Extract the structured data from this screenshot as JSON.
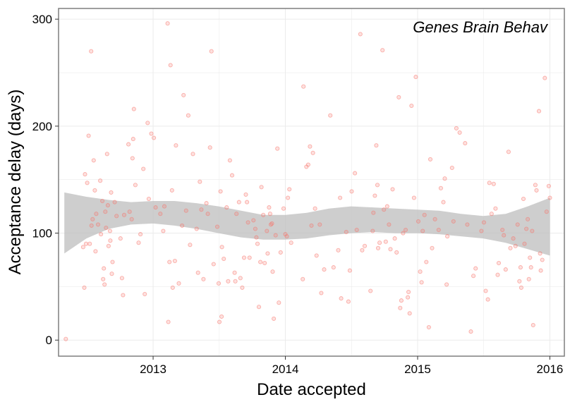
{
  "chart_data": {
    "type": "scatter",
    "title": "",
    "annotation": "Genes Brain Behav",
    "xlabel": "Date accepted",
    "ylabel": "Acceptance delay (days)",
    "x_axis_type": "date",
    "xlim": [
      "2012-04-15",
      "2016-02-10"
    ],
    "ylim": [
      -15,
      310
    ],
    "x_ticks": [
      {
        "value": "2013-01-01",
        "label": "2013"
      },
      {
        "value": "2014-01-01",
        "label": "2014"
      },
      {
        "value": "2015-01-01",
        "label": "2015"
      },
      {
        "value": "2016-01-01",
        "label": "2016"
      }
    ],
    "y_ticks": [
      {
        "value": 0,
        "label": "0"
      },
      {
        "value": 100,
        "label": "100"
      },
      {
        "value": 200,
        "label": "200"
      },
      {
        "value": 300,
        "label": "300"
      }
    ],
    "grid": true,
    "colors": {
      "points": "#f8766d",
      "ribbon": "#bdbdbd",
      "grid": "#ebebeb",
      "border": "#7f7f7f"
    },
    "points": [
      [
        "2012-05-05",
        1
      ],
      [
        "2012-06-22",
        87
      ],
      [
        "2012-06-25",
        49
      ],
      [
        "2012-06-27",
        155
      ],
      [
        "2012-06-30",
        90
      ],
      [
        "2012-07-03",
        147
      ],
      [
        "2012-07-07",
        191
      ],
      [
        "2012-07-10",
        90
      ],
      [
        "2012-07-14",
        270
      ],
      [
        "2012-07-15",
        107
      ],
      [
        "2012-07-18",
        113
      ],
      [
        "2012-07-21",
        168
      ],
      [
        "2012-07-24",
        140
      ],
      [
        "2012-07-26",
        83
      ],
      [
        "2012-07-28",
        118
      ],
      [
        "2012-08-02",
        108
      ],
      [
        "2012-08-08",
        149
      ],
      [
        "2012-08-10",
        99
      ],
      [
        "2012-08-14",
        130
      ],
      [
        "2012-08-16",
        57
      ],
      [
        "2012-08-18",
        67
      ],
      [
        "2012-08-20",
        52
      ],
      [
        "2012-08-22",
        120
      ],
      [
        "2012-08-24",
        105
      ],
      [
        "2012-08-27",
        174
      ],
      [
        "2012-08-29",
        126
      ],
      [
        "2012-08-31",
        88
      ],
      [
        "2012-09-04",
        102
      ],
      [
        "2012-09-05",
        93
      ],
      [
        "2012-09-07",
        138
      ],
      [
        "2012-09-09",
        62
      ],
      [
        "2012-09-11",
        73
      ],
      [
        "2012-09-17",
        129
      ],
      [
        "2012-09-22",
        116
      ],
      [
        "2012-10-03",
        95
      ],
      [
        "2012-10-07",
        58
      ],
      [
        "2012-10-10",
        42
      ],
      [
        "2012-10-13",
        117
      ],
      [
        "2012-10-25",
        183
      ],
      [
        "2012-10-28",
        120
      ],
      [
        "2012-11-03",
        113
      ],
      [
        "2012-11-05",
        170
      ],
      [
        "2012-11-07",
        188
      ],
      [
        "2012-11-09",
        216
      ],
      [
        "2012-11-13",
        145
      ],
      [
        "2012-11-22",
        91
      ],
      [
        "2012-11-27",
        99
      ],
      [
        "2012-12-05",
        160
      ],
      [
        "2012-12-09",
        43
      ],
      [
        "2012-12-17",
        203
      ],
      [
        "2012-12-20",
        132
      ],
      [
        "2012-12-27",
        193
      ],
      [
        "2013-01-03",
        189
      ],
      [
        "2013-01-08",
        124
      ],
      [
        "2013-01-21",
        118
      ],
      [
        "2013-01-29",
        102
      ],
      [
        "2013-02-01",
        125
      ],
      [
        "2013-02-10",
        296
      ],
      [
        "2013-02-12",
        17
      ],
      [
        "2013-02-15",
        73
      ],
      [
        "2013-02-18",
        257
      ],
      [
        "2013-02-22",
        140
      ],
      [
        "2013-02-24",
        49
      ],
      [
        "2013-03-02",
        74
      ],
      [
        "2013-03-05",
        182
      ],
      [
        "2013-03-13",
        53
      ],
      [
        "2013-03-22",
        107
      ],
      [
        "2013-03-26",
        229
      ],
      [
        "2013-04-02",
        121
      ],
      [
        "2013-04-08",
        210
      ],
      [
        "2013-04-13",
        89
      ],
      [
        "2013-04-21",
        174
      ],
      [
        "2013-05-01",
        104
      ],
      [
        "2013-05-05",
        63
      ],
      [
        "2013-05-10",
        148
      ],
      [
        "2013-05-14",
        122
      ],
      [
        "2013-05-20",
        57
      ],
      [
        "2013-05-28",
        128
      ],
      [
        "2013-06-01",
        118
      ],
      [
        "2013-06-07",
        180
      ],
      [
        "2013-06-11",
        270
      ],
      [
        "2013-06-17",
        71
      ],
      [
        "2013-06-27",
        106
      ],
      [
        "2013-07-01",
        53
      ],
      [
        "2013-07-03",
        17
      ],
      [
        "2013-07-06",
        139
      ],
      [
        "2013-07-09",
        22
      ],
      [
        "2013-07-10",
        87
      ],
      [
        "2013-07-15",
        76
      ],
      [
        "2013-07-23",
        124
      ],
      [
        "2013-07-27",
        55
      ],
      [
        "2013-08-01",
        168
      ],
      [
        "2013-08-07",
        154
      ],
      [
        "2013-08-14",
        63
      ],
      [
        "2013-08-16",
        55
      ],
      [
        "2013-08-19",
        118
      ],
      [
        "2013-08-26",
        129
      ],
      [
        "2013-08-30",
        58
      ],
      [
        "2013-09-04",
        49
      ],
      [
        "2013-09-09",
        77
      ],
      [
        "2013-09-14",
        136
      ],
      [
        "2013-09-17",
        129
      ],
      [
        "2013-09-20",
        110
      ],
      [
        "2013-09-24",
        77
      ],
      [
        "2013-10-05",
        112
      ],
      [
        "2013-10-10",
        104
      ],
      [
        "2013-10-13",
        96
      ],
      [
        "2013-10-16",
        90
      ],
      [
        "2013-10-20",
        31
      ],
      [
        "2013-10-24",
        73
      ],
      [
        "2013-10-27",
        143
      ],
      [
        "2013-11-01",
        117
      ],
      [
        "2013-11-05",
        72
      ],
      [
        "2013-11-11",
        102
      ],
      [
        "2013-11-13",
        81
      ],
      [
        "2013-11-17",
        124
      ],
      [
        "2013-11-20",
        118
      ],
      [
        "2013-11-22",
        108
      ],
      [
        "2013-11-25",
        109
      ],
      [
        "2013-11-27",
        64
      ],
      [
        "2013-11-30",
        20
      ],
      [
        "2013-12-05",
        98
      ],
      [
        "2013-12-10",
        179
      ],
      [
        "2013-12-14",
        35
      ],
      [
        "2013-12-19",
        82
      ],
      [
        "2013-12-27",
        123
      ],
      [
        "2014-01-01",
        99
      ],
      [
        "2014-01-05",
        97
      ],
      [
        "2014-01-08",
        133
      ],
      [
        "2014-01-12",
        141
      ],
      [
        "2014-01-17",
        91
      ],
      [
        "2014-02-18",
        57
      ],
      [
        "2014-02-20",
        237
      ],
      [
        "2014-02-28",
        162
      ],
      [
        "2014-03-05",
        164
      ],
      [
        "2014-03-10",
        181
      ],
      [
        "2014-03-14",
        107
      ],
      [
        "2014-03-18",
        175
      ],
      [
        "2014-03-24",
        123
      ],
      [
        "2014-03-28",
        79
      ],
      [
        "2014-04-06",
        108
      ],
      [
        "2014-04-10",
        44
      ],
      [
        "2014-04-18",
        66
      ],
      [
        "2014-05-05",
        210
      ],
      [
        "2014-05-14",
        68
      ],
      [
        "2014-05-27",
        84
      ],
      [
        "2014-06-01",
        133
      ],
      [
        "2014-06-04",
        39
      ],
      [
        "2014-06-18",
        101
      ],
      [
        "2014-06-24",
        36
      ],
      [
        "2014-06-28",
        65
      ],
      [
        "2014-07-03",
        139
      ],
      [
        "2014-07-12",
        156
      ],
      [
        "2014-07-17",
        103
      ],
      [
        "2014-07-27",
        286
      ],
      [
        "2014-08-01",
        84
      ],
      [
        "2014-08-08",
        88
      ],
      [
        "2014-08-24",
        46
      ],
      [
        "2014-08-30",
        102
      ],
      [
        "2014-09-01",
        119
      ],
      [
        "2014-09-05",
        135
      ],
      [
        "2014-09-09",
        182
      ],
      [
        "2014-09-12",
        145
      ],
      [
        "2014-09-14",
        86
      ],
      [
        "2014-09-18",
        91
      ],
      [
        "2014-09-26",
        271
      ],
      [
        "2014-09-30",
        122
      ],
      [
        "2014-10-05",
        92
      ],
      [
        "2014-10-09",
        125
      ],
      [
        "2014-10-14",
        108
      ],
      [
        "2014-10-18",
        85
      ],
      [
        "2014-10-24",
        141
      ],
      [
        "2014-10-30",
        95
      ],
      [
        "2014-11-04",
        82
      ],
      [
        "2014-11-10",
        227
      ],
      [
        "2014-11-14",
        30
      ],
      [
        "2014-11-17",
        37
      ],
      [
        "2014-11-22",
        100
      ],
      [
        "2014-11-29",
        103
      ],
      [
        "2014-12-05",
        40
      ],
      [
        "2014-12-07",
        45
      ],
      [
        "2014-12-10",
        25
      ],
      [
        "2014-12-15",
        219
      ],
      [
        "2014-12-22",
        133
      ],
      [
        "2014-12-27",
        246
      ],
      [
        "2015-01-03",
        111
      ],
      [
        "2015-01-08",
        64
      ],
      [
        "2015-01-12",
        54
      ],
      [
        "2015-01-15",
        102
      ],
      [
        "2015-01-20",
        117
      ],
      [
        "2015-01-25",
        73
      ],
      [
        "2015-02-01",
        12
      ],
      [
        "2015-02-05",
        169
      ],
      [
        "2015-02-10",
        86
      ],
      [
        "2015-02-18",
        113
      ],
      [
        "2015-02-28",
        103
      ],
      [
        "2015-03-06",
        142
      ],
      [
        "2015-03-13",
        129
      ],
      [
        "2015-03-17",
        151
      ],
      [
        "2015-03-22",
        52
      ],
      [
        "2015-03-24",
        97
      ],
      [
        "2015-04-06",
        161
      ],
      [
        "2015-04-10",
        111
      ],
      [
        "2015-04-18",
        198
      ],
      [
        "2015-04-27",
        194
      ],
      [
        "2015-05-12",
        184
      ],
      [
        "2015-05-18",
        108
      ],
      [
        "2015-05-28",
        8
      ],
      [
        "2015-06-04",
        60
      ],
      [
        "2015-06-10",
        67
      ],
      [
        "2015-06-26",
        102
      ],
      [
        "2015-07-03",
        110
      ],
      [
        "2015-07-08",
        46
      ],
      [
        "2015-07-14",
        38
      ],
      [
        "2015-07-18",
        147
      ],
      [
        "2015-07-24",
        118
      ],
      [
        "2015-07-30",
        146
      ],
      [
        "2015-08-04",
        123
      ],
      [
        "2015-08-10",
        61
      ],
      [
        "2015-08-13",
        72
      ],
      [
        "2015-08-23",
        103
      ],
      [
        "2015-08-27",
        98
      ],
      [
        "2015-09-01",
        66
      ],
      [
        "2015-09-09",
        176
      ],
      [
        "2015-09-14",
        86
      ],
      [
        "2015-09-22",
        95
      ],
      [
        "2015-09-28",
        88
      ],
      [
        "2015-10-04",
        108
      ],
      [
        "2015-10-09",
        55
      ],
      [
        "2015-10-12",
        68
      ],
      [
        "2015-10-14",
        49
      ],
      [
        "2015-10-20",
        132
      ],
      [
        "2015-10-23",
        90
      ],
      [
        "2015-10-28",
        104
      ],
      [
        "2015-11-01",
        113
      ],
      [
        "2015-11-04",
        57
      ],
      [
        "2015-11-07",
        77
      ],
      [
        "2015-11-10",
        68
      ],
      [
        "2015-11-13",
        102
      ],
      [
        "2015-11-16",
        14
      ],
      [
        "2015-11-22",
        145
      ],
      [
        "2015-11-25",
        140
      ],
      [
        "2015-12-02",
        214
      ],
      [
        "2015-12-05",
        81
      ],
      [
        "2015-12-07",
        65
      ],
      [
        "2015-12-11",
        75
      ],
      [
        "2015-12-18",
        245
      ],
      [
        "2015-12-23",
        120
      ],
      [
        "2015-12-29",
        144
      ],
      [
        "2016-01-01",
        133
      ]
    ],
    "smooth": [
      {
        "x": "2012-05-01",
        "lower": 81,
        "upper": 138
      },
      {
        "x": "2012-07-01",
        "lower": 95,
        "upper": 134
      },
      {
        "x": "2012-09-01",
        "lower": 104,
        "upper": 131
      },
      {
        "x": "2012-11-01",
        "lower": 108,
        "upper": 129
      },
      {
        "x": "2013-01-01",
        "lower": 109,
        "upper": 130
      },
      {
        "x": "2013-03-01",
        "lower": 107,
        "upper": 130
      },
      {
        "x": "2013-05-01",
        "lower": 104,
        "upper": 128
      },
      {
        "x": "2013-07-01",
        "lower": 100,
        "upper": 125
      },
      {
        "x": "2013-09-01",
        "lower": 96,
        "upper": 121
      },
      {
        "x": "2013-11-01",
        "lower": 94,
        "upper": 117
      },
      {
        "x": "2014-01-01",
        "lower": 94,
        "upper": 117
      },
      {
        "x": "2014-03-01",
        "lower": 95,
        "upper": 119
      },
      {
        "x": "2014-05-01",
        "lower": 98,
        "upper": 123
      },
      {
        "x": "2014-07-01",
        "lower": 100,
        "upper": 125
      },
      {
        "x": "2014-09-01",
        "lower": 101,
        "upper": 124
      },
      {
        "x": "2014-11-01",
        "lower": 100,
        "upper": 123
      },
      {
        "x": "2015-01-01",
        "lower": 100,
        "upper": 122
      },
      {
        "x": "2015-03-01",
        "lower": 99,
        "upper": 121
      },
      {
        "x": "2015-05-01",
        "lower": 97,
        "upper": 118
      },
      {
        "x": "2015-07-01",
        "lower": 95,
        "upper": 116
      },
      {
        "x": "2015-09-01",
        "lower": 91,
        "upper": 118
      },
      {
        "x": "2015-11-01",
        "lower": 85,
        "upper": 125
      },
      {
        "x": "2016-01-01",
        "lower": 79,
        "upper": 133
      }
    ]
  }
}
